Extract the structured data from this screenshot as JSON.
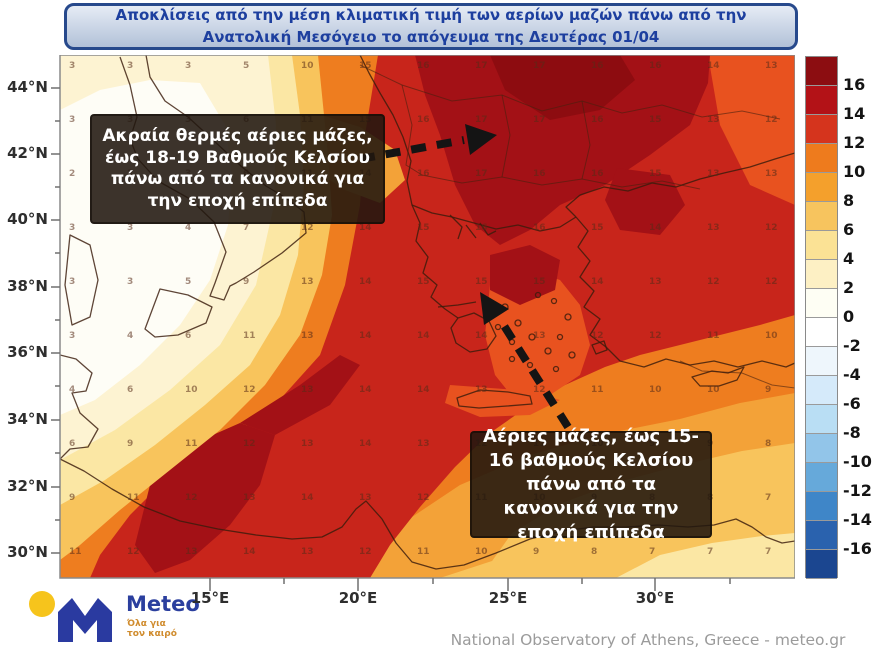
{
  "title": "Αποκλίσεις από την μέση κλιματική τιμή των αερίων μαζών πάνω από την Ανατολική Μεσόγειο το απόγευμα της Δευτέρας 01/04",
  "map": {
    "lat_labels": [
      "44°N",
      "42°N",
      "40°N",
      "38°N",
      "36°N",
      "34°N",
      "32°N",
      "30°N"
    ],
    "lon_labels": [
      "15°E",
      "20°E",
      "25°E",
      "30°E"
    ],
    "annotations": [
      {
        "text": "Ακραία θερμές αέριες μάζες, έως 18-19 Βαθμούς Κελσίου πάνω από τα κανονικά για την εποχή επίπεδα"
      },
      {
        "text": "Αέριες μάζες, έως 15-16 βαθμούς Κελσίου πάνω από τα κανονικά για την εποχή επίπεδα"
      }
    ],
    "grid_values": [
      [
        3,
        3,
        3,
        5,
        10,
        15,
        16,
        17,
        17,
        16,
        16,
        14,
        13
      ],
      [
        3,
        3,
        3,
        6,
        11,
        15,
        16,
        17,
        17,
        16,
        15,
        13,
        12
      ],
      [
        2,
        3,
        3,
        6,
        11,
        14,
        16,
        17,
        16,
        16,
        15,
        13,
        13
      ],
      [
        3,
        3,
        4,
        7,
        12,
        14,
        15,
        16,
        16,
        15,
        14,
        13,
        12
      ],
      [
        3,
        3,
        5,
        9,
        13,
        14,
        15,
        15,
        15,
        14,
        13,
        12,
        12
      ],
      [
        3,
        4,
        6,
        11,
        13,
        14,
        14,
        14,
        13,
        12,
        12,
        11,
        10
      ],
      [
        4,
        6,
        10,
        12,
        13,
        14,
        14,
        13,
        12,
        11,
        10,
        10,
        9
      ],
      [
        6,
        9,
        11,
        12,
        13,
        14,
        13,
        12,
        11,
        10,
        9,
        9,
        8
      ],
      [
        9,
        11,
        12,
        13,
        14,
        13,
        12,
        11,
        10,
        9,
        8,
        8,
        7
      ],
      [
        11,
        12,
        13,
        14,
        13,
        12,
        11,
        10,
        9,
        8,
        7,
        7,
        7
      ]
    ],
    "field_colors": {
      "darkest_red": "#8d0c10",
      "dark_red": "#a31116",
      "red": "#c8251b",
      "orange_red": "#e8521f",
      "orange": "#ee7d1f",
      "amber": "#f3a238",
      "yellow": "#f8c45c",
      "pale_yellow": "#fbe7a4",
      "cream": "#fdf3d2",
      "white": "#fefdf6"
    }
  },
  "colorbar": {
    "tick_labels": [
      "16",
      "14",
      "12",
      "10",
      "8",
      "6",
      "4",
      "2",
      "0",
      "-2",
      "-4",
      "-6",
      "-8",
      "-10",
      "-12",
      "-14",
      "-16"
    ],
    "segment_colors": [
      "#8c0d11",
      "#b31217",
      "#d5341d",
      "#ee7b1d",
      "#f4a02c",
      "#f7c45e",
      "#fbe295",
      "#fdf0c4",
      "#fefef4",
      "#ffffff",
      "#eef6fc",
      "#d5eafa",
      "#b9def4",
      "#92c5e9",
      "#66a9da",
      "#3f86c8",
      "#2a62ae",
      "#1b4690"
    ]
  },
  "logo": {
    "brand": "Meteo",
    "tagline_line1": "Όλα για",
    "tagline_line2": "τον καιρό"
  },
  "attribution": "National Observatory of Athens, Greece - meteo.gr"
}
